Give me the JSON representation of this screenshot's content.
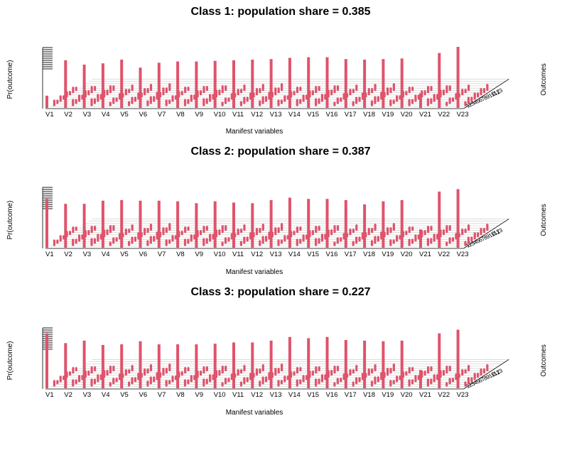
{
  "chart_data": [
    {
      "type": "bar",
      "title": "Class 1: population share = 0.385",
      "xlabel": "Manifest variables",
      "ylabel": "Pr(outcome)",
      "zlabel": "Outcomes",
      "categories": [
        "V1",
        "V2",
        "V3",
        "V4",
        "V5",
        "V6",
        "V7",
        "V8",
        "V9",
        "V10",
        "V11",
        "V12",
        "V13",
        "V14",
        "V15",
        "V16",
        "V17",
        "V18",
        "V19",
        "V20",
        "V21",
        "V22",
        "V23"
      ],
      "outcome_ticks": [
        "1",
        "2",
        "3",
        "4",
        "5",
        "6",
        "7",
        "8",
        "9",
        "10",
        "11",
        "12",
        "13"
      ],
      "max_probability": [
        0.2,
        0.78,
        0.71,
        0.73,
        0.79,
        0.66,
        0.74,
        0.76,
        0.76,
        0.77,
        0.78,
        0.79,
        0.8,
        0.82,
        0.83,
        0.83,
        0.8,
        0.79,
        0.8,
        0.81,
        0.24,
        0.9,
        1.0
      ],
      "color": "#df536b"
    },
    {
      "type": "bar",
      "title": "Class 2: population share = 0.387",
      "xlabel": "Manifest variables",
      "ylabel": "Pr(outcome)",
      "zlabel": "Outcomes",
      "categories": [
        "V1",
        "V2",
        "V3",
        "V4",
        "V5",
        "V6",
        "V7",
        "V8",
        "V9",
        "V10",
        "V11",
        "V12",
        "V13",
        "V14",
        "V15",
        "V16",
        "V17",
        "V18",
        "V19",
        "V20",
        "V21",
        "V22",
        "V23"
      ],
      "outcome_ticks": [
        "1",
        "2",
        "3",
        "4",
        "5",
        "6",
        "7",
        "8",
        "9",
        "10",
        "11",
        "12",
        "13"
      ],
      "max_probability": [
        0.8,
        0.72,
        0.72,
        0.77,
        0.78,
        0.77,
        0.77,
        0.76,
        0.73,
        0.76,
        0.74,
        0.73,
        0.78,
        0.82,
        0.8,
        0.8,
        0.78,
        0.71,
        0.76,
        0.78,
        0.3,
        0.92,
        0.96
      ],
      "color": "#df536b"
    },
    {
      "type": "bar",
      "title": "Class 3: population share = 0.227",
      "xlabel": "Manifest variables",
      "ylabel": "Pr(outcome)",
      "zlabel": "Outcomes",
      "categories": [
        "V1",
        "V2",
        "V3",
        "V4",
        "V5",
        "V6",
        "V7",
        "V8",
        "V9",
        "V10",
        "V11",
        "V12",
        "V13",
        "V14",
        "V15",
        "V16",
        "V17",
        "V18",
        "V19",
        "V20",
        "V21",
        "V22",
        "V23"
      ],
      "outcome_ticks": [
        "1",
        "2",
        "3",
        "4",
        "5",
        "6",
        "7",
        "8",
        "9",
        "10",
        "11",
        "12",
        "13"
      ],
      "max_probability": [
        0.9,
        0.74,
        0.78,
        0.71,
        0.72,
        0.77,
        0.72,
        0.72,
        0.72,
        0.73,
        0.75,
        0.75,
        0.78,
        0.84,
        0.82,
        0.84,
        0.79,
        0.78,
        0.77,
        0.78,
        0.3,
        0.9,
        0.96
      ],
      "color": "#df536b"
    }
  ]
}
